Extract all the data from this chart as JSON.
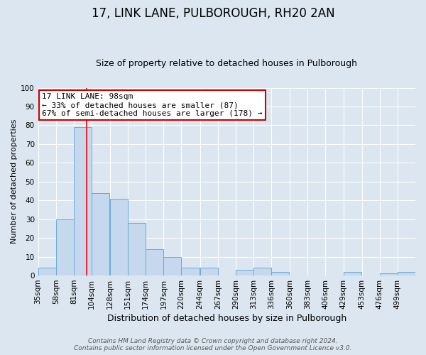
{
  "title": "17, LINK LANE, PULBOROUGH, RH20 2AN",
  "subtitle": "Size of property relative to detached houses in Pulborough",
  "xlabel": "Distribution of detached houses by size in Pulborough",
  "ylabel": "Number of detached properties",
  "bins": [
    35,
    58,
    81,
    104,
    128,
    151,
    174,
    197,
    220,
    244,
    267,
    290,
    313,
    336,
    360,
    383,
    406,
    429,
    453,
    476,
    499
  ],
  "counts": [
    4,
    30,
    79,
    44,
    41,
    28,
    14,
    10,
    4,
    4,
    0,
    3,
    4,
    2,
    0,
    0,
    0,
    2,
    0,
    1,
    2
  ],
  "bar_color": "#c5d8ee",
  "bar_edge_color": "#6aaad4",
  "background_color": "#dce6f0",
  "grid_color": "#ffffff",
  "red_line_x": 98,
  "annotation_line1": "17 LINK LANE: 98sqm",
  "annotation_line2": "← 33% of detached houses are smaller (87)",
  "annotation_line3": "67% of semi-detached houses are larger (178) →",
  "annotation_box_facecolor": "#ffffff",
  "annotation_box_edgecolor": "#cc0000",
  "ylim": [
    0,
    100
  ],
  "yticks": [
    0,
    10,
    20,
    30,
    40,
    50,
    60,
    70,
    80,
    90,
    100
  ],
  "footer_line1": "Contains HM Land Registry data © Crown copyright and database right 2024.",
  "footer_line2": "Contains public sector information licensed under the Open Government Licence v3.0.",
  "title_fontsize": 12,
  "subtitle_fontsize": 9,
  "xlabel_fontsize": 9,
  "ylabel_fontsize": 8,
  "tick_fontsize": 7.5,
  "annotation_fontsize": 8,
  "footer_fontsize": 6.5
}
